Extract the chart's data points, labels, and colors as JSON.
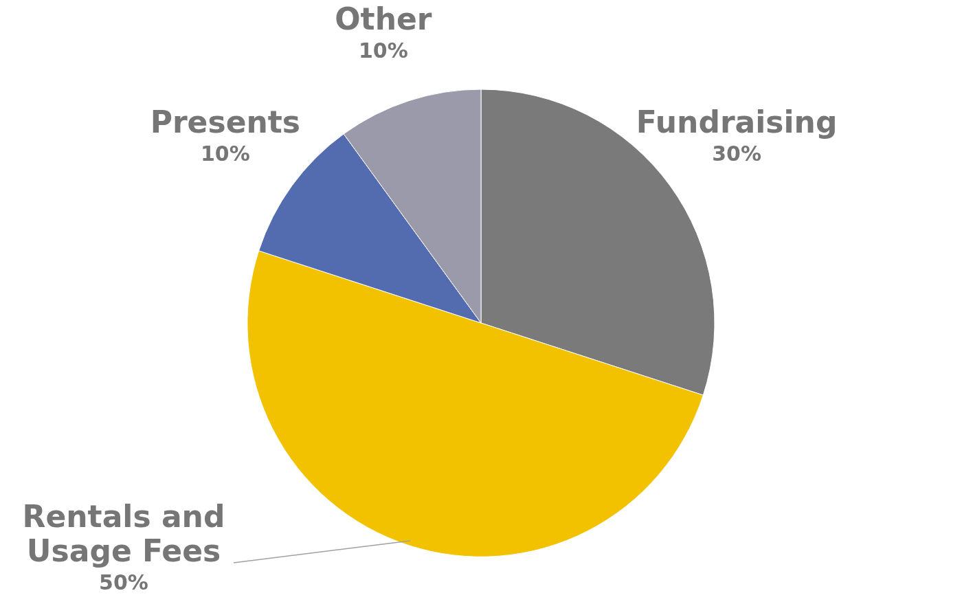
{
  "chart_data": {
    "type": "pie",
    "categories": [
      "Fundraising",
      "Rentals and Usage Fees",
      "Presents",
      "Other"
    ],
    "values": [
      30,
      50,
      10,
      10
    ],
    "colors": [
      "#7a7a7a",
      "#f2c200",
      "#536cb0",
      "#9a9aaa"
    ],
    "value_labels": [
      "30%",
      "50%",
      "10%",
      "10%"
    ]
  }
}
